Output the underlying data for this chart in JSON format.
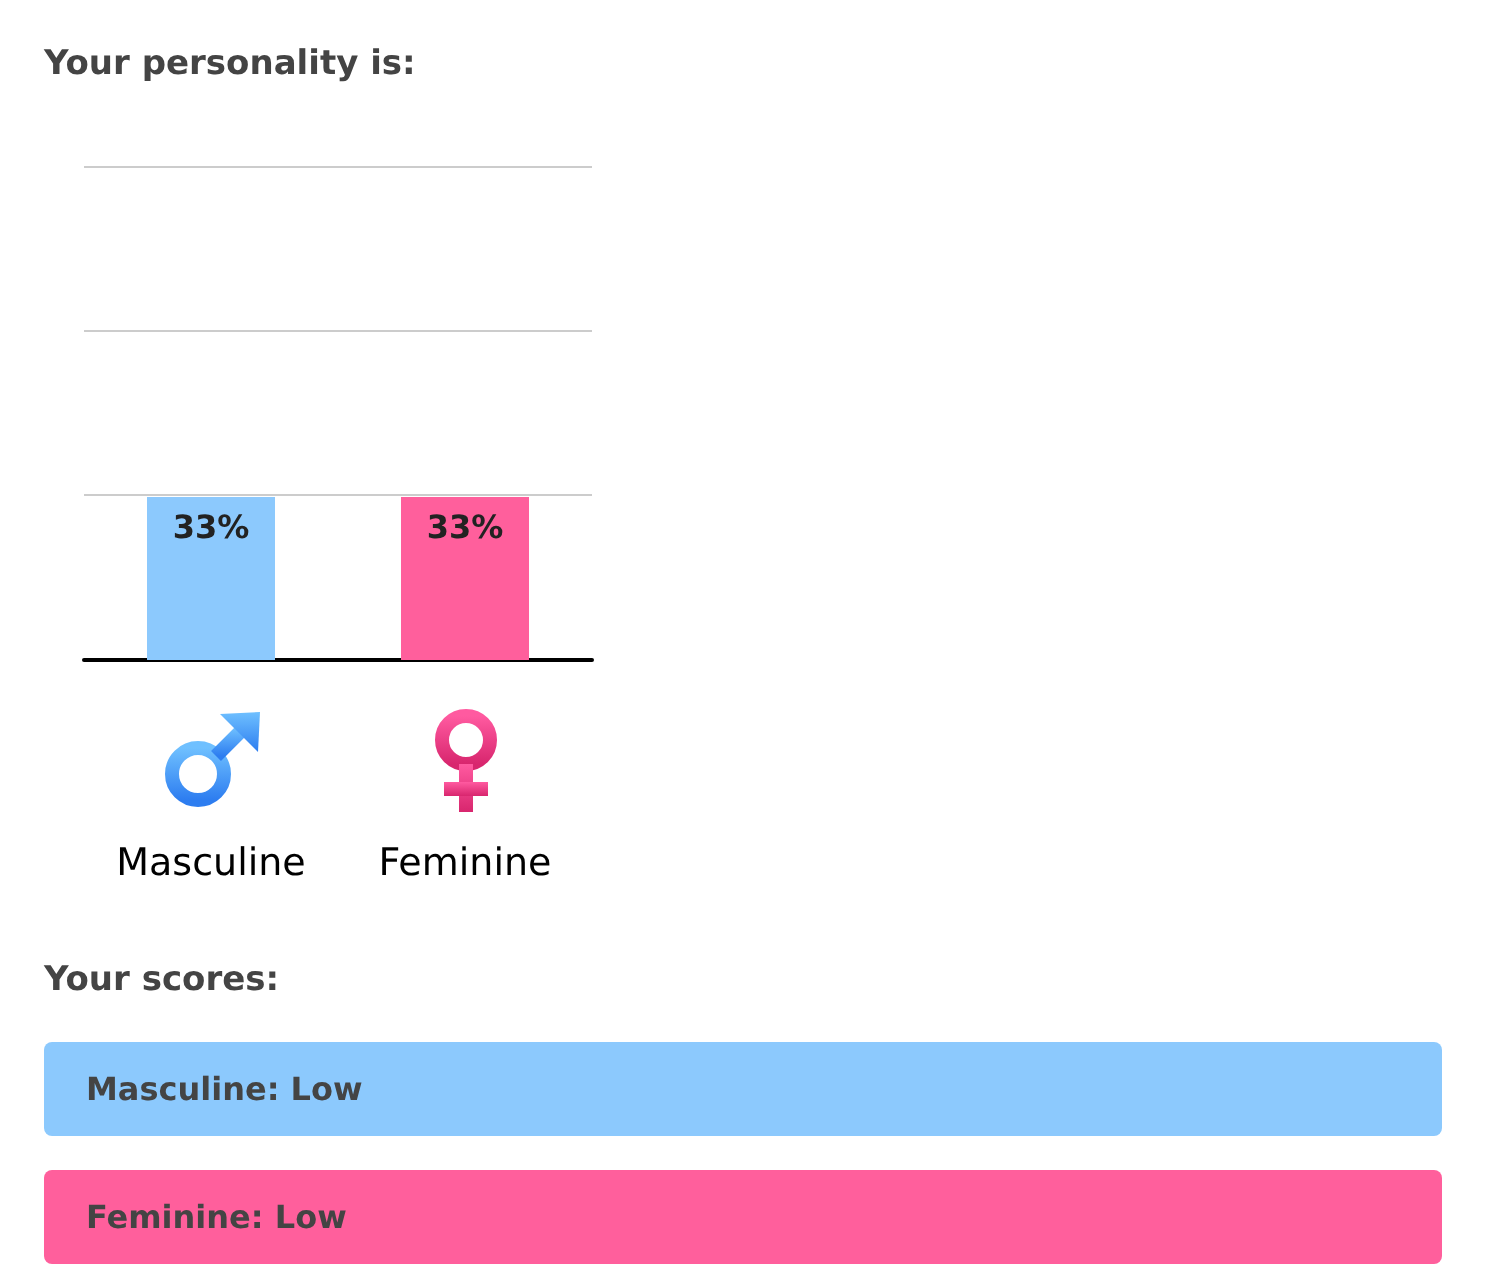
{
  "chart_data": {
    "type": "bar",
    "title": "Your personality is:",
    "categories": [
      "Masculine",
      "Feminine"
    ],
    "values": [
      33,
      33
    ],
    "colors": [
      "#8cc9fd",
      "#ff5f9c"
    ],
    "value_labels": [
      "33%",
      "33%"
    ],
    "ylim": [
      0,
      100
    ],
    "yticks": [
      {
        "value": 0,
        "label": null
      },
      {
        "value": 33.3,
        "label": null
      },
      {
        "value": 66.7,
        "label": null
      },
      {
        "value": 100,
        "label": null
      }
    ],
    "grid": "y",
    "tick_labels": "x",
    "annotations": [
      "Your scores:",
      "Masculine: Low",
      "Feminine: Low"
    ]
  }
}
